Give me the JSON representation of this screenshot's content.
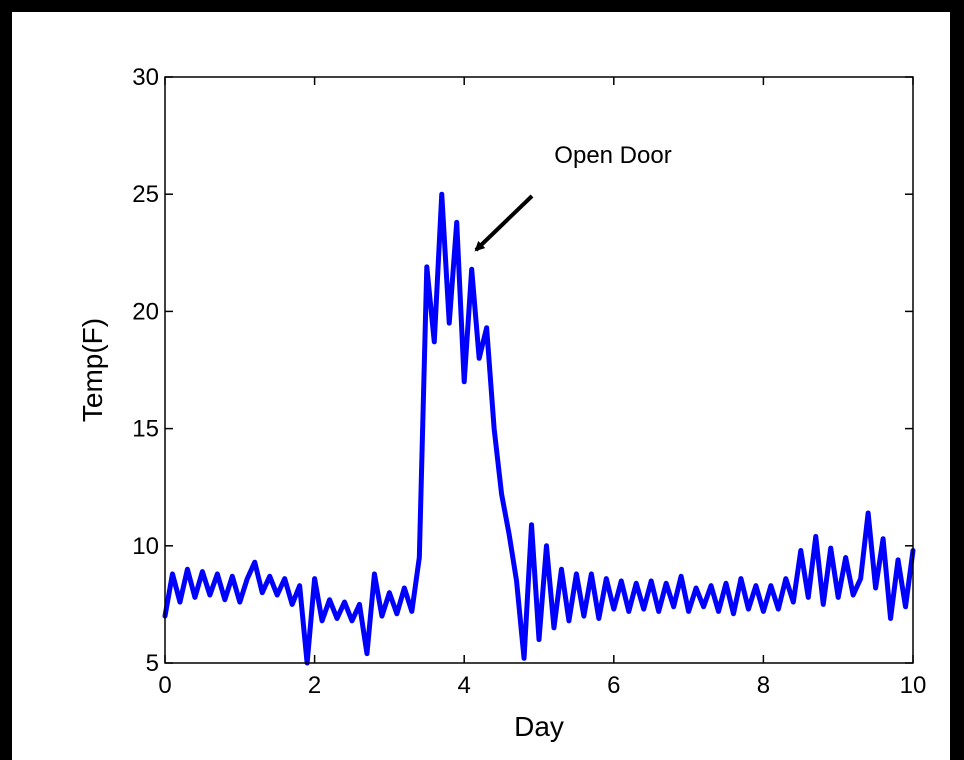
{
  "chart_data": {
    "type": "line",
    "xlabel": "Day",
    "ylabel": "Temp(F)",
    "annotation": "Open Door",
    "x": [
      0,
      0.1,
      0.2,
      0.3,
      0.4,
      0.5,
      0.6,
      0.7,
      0.8,
      0.9,
      1,
      1.1,
      1.2,
      1.3,
      1.4,
      1.5,
      1.6,
      1.7,
      1.8,
      1.9,
      2,
      2.1,
      2.2,
      2.3,
      2.4,
      2.5,
      2.6,
      2.7,
      2.8,
      2.9,
      3,
      3.1,
      3.2,
      3.3,
      3.4,
      3.5,
      3.6,
      3.7,
      3.8,
      3.9,
      4,
      4.1,
      4.2,
      4.3,
      4.4,
      4.5,
      4.6,
      4.7,
      4.8,
      4.9,
      5,
      5.1,
      5.2,
      5.3,
      5.4,
      5.5,
      5.6,
      5.7,
      5.8,
      5.9,
      6,
      6.1,
      6.2,
      6.3,
      6.4,
      6.5,
      6.6,
      6.7,
      6.8,
      6.9,
      7,
      7.1,
      7.2,
      7.3,
      7.4,
      7.5,
      7.6,
      7.7,
      7.8,
      7.9,
      8,
      8.1,
      8.2,
      8.3,
      8.4,
      8.5,
      8.6,
      8.7,
      8.8,
      8.9,
      9,
      9.1,
      9.2,
      9.3,
      9.4,
      9.5,
      9.6,
      9.7,
      9.8,
      9.9,
      10
    ],
    "series": [
      {
        "name": "Temp",
        "color": "#0000ff",
        "values": [
          7.0,
          8.8,
          7.6,
          9.0,
          7.8,
          8.9,
          7.9,
          8.8,
          7.7,
          8.7,
          7.6,
          8.6,
          9.3,
          8.0,
          8.7,
          7.9,
          8.6,
          7.5,
          8.3,
          5.0,
          8.6,
          6.8,
          7.7,
          6.9,
          7.6,
          6.8,
          7.5,
          5.4,
          8.8,
          7.0,
          8.0,
          7.1,
          8.2,
          7.2,
          9.5,
          21.9,
          18.7,
          25.0,
          19.5,
          23.8,
          17.0,
          21.8,
          18.0,
          19.3,
          15.0,
          12.2,
          10.5,
          8.5,
          5.2,
          10.9,
          6.0,
          10.0,
          6.5,
          9.0,
          6.8,
          8.8,
          7.0,
          8.8,
          6.9,
          8.6,
          7.3,
          8.5,
          7.2,
          8.4,
          7.3,
          8.5,
          7.2,
          8.4,
          7.4,
          8.7,
          7.2,
          8.2,
          7.4,
          8.3,
          7.2,
          8.4,
          7.1,
          8.6,
          7.3,
          8.3,
          7.2,
          8.3,
          7.3,
          8.6,
          7.6,
          9.8,
          7.8,
          10.4,
          7.5,
          9.9,
          7.8,
          9.5,
          7.9,
          8.6,
          11.4,
          8.2,
          10.3,
          6.9,
          9.4,
          7.4,
          9.8
        ]
      }
    ],
    "xlim": [
      0,
      10
    ],
    "xticks": [
      0,
      2,
      4,
      6,
      8,
      10
    ],
    "ylim": [
      5,
      30
    ],
    "yticks": [
      5,
      10,
      15,
      20,
      25,
      30
    ],
    "grid": false
  }
}
